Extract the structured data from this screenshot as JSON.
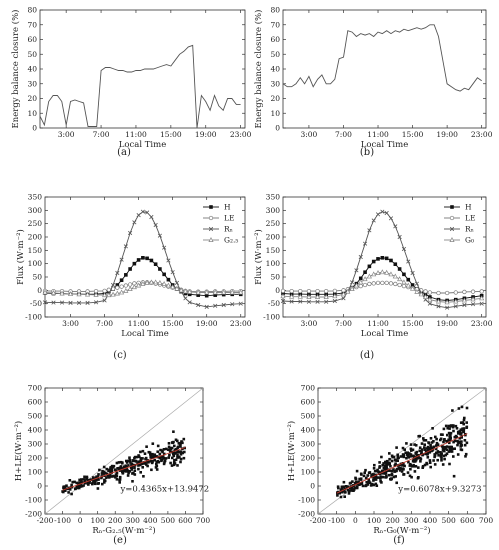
{
  "chart_data": [
    {
      "panel": "(a)",
      "type": "line",
      "ylabel": "Energy balance closure (%)",
      "xlabel": "Local Time",
      "xlim": [
        0,
        23.5
      ],
      "ylim": [
        0,
        80
      ],
      "yticks": [
        0,
        10,
        20,
        30,
        40,
        50,
        60,
        70,
        80
      ],
      "xticks": [
        3,
        7,
        11,
        15,
        19,
        23
      ],
      "xticklabels": [
        "3:00",
        "7:00",
        "11:00",
        "15:00",
        "19:00",
        "23:00"
      ],
      "series": [
        {
          "x": [
            0,
            0.5,
            1,
            1.5,
            2,
            2.5,
            3,
            3.5,
            4,
            4.5,
            5,
            5.5,
            6,
            6.5,
            7,
            7.5,
            8,
            8.5,
            9,
            9.5,
            10,
            10.5,
            11,
            11.5,
            12,
            12.5,
            13,
            13.5,
            14,
            14.5,
            15,
            15.5,
            16,
            16.5,
            17,
            17.5,
            18,
            18.5,
            19,
            19.5,
            20,
            20.5,
            21,
            21.5,
            22,
            22.5,
            23
          ],
          "y": [
            8,
            2,
            18,
            22,
            22,
            18,
            2,
            18,
            19,
            18,
            17,
            1,
            1,
            1,
            39,
            41,
            41,
            40,
            39,
            39,
            38,
            38,
            39,
            39,
            40,
            40,
            40,
            41,
            42,
            43,
            42,
            46,
            50,
            52,
            55,
            56,
            0,
            22,
            18,
            12,
            22,
            15,
            12,
            20,
            20,
            16,
            16
          ]
        }
      ]
    },
    {
      "panel": "(b)",
      "type": "line",
      "ylabel": "Energy balance closure (%)",
      "xlabel": "Local Time",
      "xlim": [
        0,
        23.5
      ],
      "ylim": [
        0,
        80
      ],
      "yticks": [
        0,
        10,
        20,
        30,
        40,
        50,
        60,
        70,
        80
      ],
      "xticks": [
        3,
        7,
        11,
        15,
        19,
        23
      ],
      "xticklabels": [
        "3:00",
        "7:00",
        "11:00",
        "15:00",
        "19:00",
        "23:00"
      ],
      "series": [
        {
          "x": [
            0,
            0.5,
            1,
            1.5,
            2,
            2.5,
            3,
            3.5,
            4,
            4.5,
            5,
            5.5,
            6,
            6.5,
            7,
            7.5,
            8,
            8.5,
            9,
            9.5,
            10,
            10.5,
            11,
            11.5,
            12,
            12.5,
            13,
            13.5,
            14,
            14.5,
            15,
            15.5,
            16,
            16.5,
            17,
            17.5,
            18,
            18.5,
            19,
            19.5,
            20,
            20.5,
            21,
            21.5,
            22,
            22.5,
            23
          ],
          "y": [
            30,
            28,
            28,
            30,
            34,
            30,
            35,
            28,
            33,
            36,
            30,
            30,
            33,
            47,
            48,
            66,
            65,
            62,
            64,
            63,
            64,
            62,
            65,
            64,
            66,
            64,
            66,
            65,
            67,
            66,
            67,
            68,
            67,
            68,
            70,
            70,
            62,
            46,
            30,
            28,
            26,
            25,
            27,
            26,
            30,
            34,
            32
          ]
        }
      ]
    },
    {
      "panel": "(c)",
      "type": "line",
      "ylabel": "Flux (W·m⁻²)",
      "xlabel": "Local Time",
      "xlim": [
        0,
        23.5
      ],
      "ylim": [
        -100,
        350
      ],
      "yticks": [
        -100,
        -50,
        0,
        50,
        100,
        150,
        200,
        250,
        300,
        350
      ],
      "xticks": [
        3,
        7,
        11,
        15,
        19,
        23
      ],
      "xticklabels": [
        "3:00",
        "7:00",
        "11:00",
        "15:00",
        "19:00",
        "23:00"
      ],
      "legend": "top-right",
      "series": [
        {
          "name": "H",
          "marker": "filled-square",
          "x": [
            0,
            1,
            2,
            3,
            4,
            5,
            6,
            7,
            7.5,
            8,
            8.5,
            9,
            9.5,
            10,
            10.5,
            11,
            11.5,
            12,
            12.5,
            13,
            13.5,
            14,
            14.5,
            15,
            15.5,
            16,
            16.5,
            17,
            18,
            19,
            20,
            21,
            22,
            23
          ],
          "y": [
            -10,
            -12,
            -12,
            -14,
            -14,
            -15,
            -14,
            -12,
            -5,
            5,
            20,
            38,
            58,
            80,
            100,
            114,
            122,
            120,
            112,
            98,
            80,
            60,
            40,
            20,
            5,
            -5,
            -12,
            -15,
            -18,
            -20,
            -18,
            -16,
            -15,
            -15
          ]
        },
        {
          "name": "LE",
          "marker": "open-circle",
          "x": [
            0,
            1,
            2,
            3,
            4,
            5,
            6,
            7,
            7.5,
            8,
            8.5,
            9,
            9.5,
            10,
            10.5,
            11,
            11.5,
            12,
            12.5,
            13,
            13.5,
            14,
            14.5,
            15,
            15.5,
            16,
            16.5,
            17,
            18,
            19,
            20,
            21,
            22,
            23
          ],
          "y": [
            -2,
            -3,
            -3,
            -4,
            -4,
            -4,
            -3,
            -2,
            2,
            6,
            10,
            14,
            18,
            22,
            26,
            28,
            30,
            30,
            28,
            25,
            22,
            18,
            14,
            10,
            6,
            2,
            -2,
            -4,
            -5,
            -5,
            -4,
            -4,
            -3,
            -3
          ]
        },
        {
          "name": "Rₙ",
          "marker": "x",
          "x": [
            0,
            1,
            2,
            3,
            4,
            5,
            6,
            7,
            7.5,
            8,
            8.5,
            9,
            9.5,
            10,
            10.5,
            11,
            11.5,
            12,
            12.5,
            13,
            13.5,
            14,
            14.5,
            15,
            15.5,
            16,
            16.5,
            17,
            18,
            19,
            20,
            21,
            22,
            23
          ],
          "y": [
            -45,
            -46,
            -46,
            -47,
            -47,
            -47,
            -45,
            -38,
            -15,
            20,
            65,
            115,
            165,
            215,
            255,
            282,
            295,
            292,
            275,
            245,
            205,
            160,
            112,
            68,
            28,
            -5,
            -30,
            -45,
            -55,
            -62,
            -58,
            -55,
            -52,
            -50
          ]
        },
        {
          "name": "G₂.₅",
          "marker": "open-triangle",
          "x": [
            0,
            1,
            2,
            3,
            4,
            5,
            6,
            7,
            7.5,
            8,
            8.5,
            9,
            9.5,
            10,
            10.5,
            11,
            11.5,
            12,
            12.5,
            13,
            13.5,
            14,
            14.5,
            15,
            15.5,
            16,
            16.5,
            17,
            18,
            19,
            20,
            21,
            22,
            23
          ],
          "y": [
            -8,
            -10,
            -12,
            -14,
            -15,
            -16,
            -17,
            -18,
            -18,
            -16,
            -12,
            -8,
            -2,
            5,
            12,
            18,
            24,
            28,
            30,
            30,
            28,
            24,
            18,
            12,
            6,
            0,
            -4,
            -6,
            -8,
            -8,
            -8,
            -8,
            -8,
            -8
          ]
        }
      ]
    },
    {
      "panel": "(d)",
      "type": "line",
      "ylabel": "Flux (W·m⁻²)",
      "xlabel": "Local Time",
      "xlim": [
        0,
        23.5
      ],
      "ylim": [
        -100,
        350
      ],
      "yticks": [
        -100,
        -50,
        0,
        50,
        100,
        150,
        200,
        250,
        300,
        350
      ],
      "xticks": [
        3,
        7,
        11,
        15,
        19,
        23
      ],
      "xticklabels": [
        "3:00",
        "7:00",
        "11:00",
        "15:00",
        "19:00",
        "23:00"
      ],
      "legend": "top-right",
      "series": [
        {
          "name": "H",
          "marker": "filled-square",
          "x": [
            0,
            1,
            2,
            3,
            4,
            5,
            6,
            7,
            7.5,
            8,
            8.5,
            9,
            9.5,
            10,
            10.5,
            11,
            11.5,
            12,
            12.5,
            13,
            13.5,
            14,
            14.5,
            15,
            15.5,
            16,
            16.5,
            17,
            18,
            19,
            20,
            21,
            22,
            23
          ],
          "y": [
            -12,
            -14,
            -14,
            -15,
            -15,
            -15,
            -14,
            -10,
            -2,
            10,
            25,
            45,
            68,
            90,
            108,
            118,
            122,
            120,
            112,
            98,
            80,
            60,
            40,
            20,
            5,
            -5,
            -15,
            -25,
            -35,
            -38,
            -35,
            -30,
            -25,
            -20
          ]
        },
        {
          "name": "LE",
          "marker": "open-circle",
          "x": [
            0,
            1,
            2,
            3,
            4,
            5,
            6,
            7,
            7.5,
            8,
            8.5,
            9,
            9.5,
            10,
            10.5,
            11,
            11.5,
            12,
            12.5,
            13,
            13.5,
            14,
            14.5,
            15,
            15.5,
            16,
            16.5,
            17,
            18,
            19,
            20,
            21,
            22,
            23
          ],
          "y": [
            -2,
            -3,
            -3,
            -3,
            -3,
            -3,
            -2,
            0,
            4,
            8,
            12,
            16,
            20,
            24,
            26,
            28,
            28,
            28,
            26,
            24,
            20,
            16,
            12,
            8,
            4,
            0,
            -4,
            -8,
            -10,
            -10,
            -8,
            -6,
            -5,
            -4
          ]
        },
        {
          "name": "Rₙ",
          "marker": "x",
          "x": [
            0,
            1,
            2,
            3,
            4,
            5,
            6,
            7,
            7.5,
            8,
            8.5,
            9,
            9.5,
            10,
            10.5,
            11,
            11.5,
            12,
            12.5,
            13,
            13.5,
            14,
            14.5,
            15,
            15.5,
            16,
            16.5,
            17,
            18,
            19,
            20,
            21,
            22,
            23
          ],
          "y": [
            -40,
            -42,
            -42,
            -43,
            -43,
            -43,
            -40,
            -30,
            -5,
            30,
            75,
            125,
            175,
            225,
            262,
            285,
            295,
            290,
            270,
            240,
            200,
            155,
            108,
            65,
            25,
            -10,
            -35,
            -50,
            -60,
            -65,
            -60,
            -55,
            -52,
            -50
          ]
        },
        {
          "name": "G₀",
          "marker": "open-triangle",
          "x": [
            0,
            1,
            2,
            3,
            4,
            5,
            6,
            7,
            7.5,
            8,
            8.5,
            9,
            9.5,
            10,
            10.5,
            11,
            11.5,
            12,
            12.5,
            13,
            13.5,
            14,
            14.5,
            15,
            15.5,
            16,
            16.5,
            17,
            18,
            19,
            20,
            21,
            22,
            23
          ],
          "y": [
            -22,
            -24,
            -24,
            -25,
            -25,
            -25,
            -22,
            -15,
            -5,
            5,
            18,
            30,
            42,
            52,
            60,
            65,
            68,
            66,
            60,
            52,
            42,
            30,
            18,
            6,
            -6,
            -15,
            -25,
            -35,
            -42,
            -45,
            -42,
            -38,
            -34,
            -30
          ]
        }
      ]
    },
    {
      "panel": "(e)",
      "type": "scatter",
      "ylabel": "H+LE(W·m⁻²)",
      "xlabel": "Rₙ-G₂.₅(W·m⁻²)",
      "xlim": [
        -200,
        700
      ],
      "ylim": [
        -200,
        700
      ],
      "xticks": [
        -200,
        -100,
        0,
        100,
        200,
        300,
        400,
        500,
        600,
        700
      ],
      "yticks": [
        -200,
        -100,
        0,
        100,
        200,
        300,
        400,
        500,
        600,
        700
      ],
      "annotation": "y=0.4365x+13.9472",
      "fit": {
        "slope": 0.4365,
        "intercept": 13.9472,
        "x_range": [
          -100,
          600
        ]
      },
      "reference": "1:1 line",
      "scatter_cloud": {
        "x_range": [
          -100,
          600
        ],
        "slope": 0.4365,
        "intercept": 13.9472,
        "spread": 40,
        "n_points": 360
      }
    },
    {
      "panel": "(f)",
      "type": "scatter",
      "ylabel": "H+LE(W·m⁻²)",
      "xlabel": "Rₙ-G₀(W·m⁻²)",
      "xlim": [
        -200,
        700
      ],
      "ylim": [
        -200,
        700
      ],
      "xticks": [
        -200,
        -100,
        0,
        100,
        200,
        300,
        400,
        500,
        600,
        700
      ],
      "yticks": [
        -200,
        -100,
        0,
        100,
        200,
        300,
        400,
        500,
        600,
        700
      ],
      "annotation": "y=0.6078x+9.3273",
      "fit": {
        "slope": 0.6078,
        "intercept": 9.3273,
        "x_range": [
          -100,
          600
        ]
      },
      "reference": "1:1 line",
      "scatter_cloud": {
        "x_range": [
          -100,
          600
        ],
        "slope": 0.6078,
        "intercept": 9.3273,
        "spread": 60,
        "n_points": 460
      }
    }
  ]
}
